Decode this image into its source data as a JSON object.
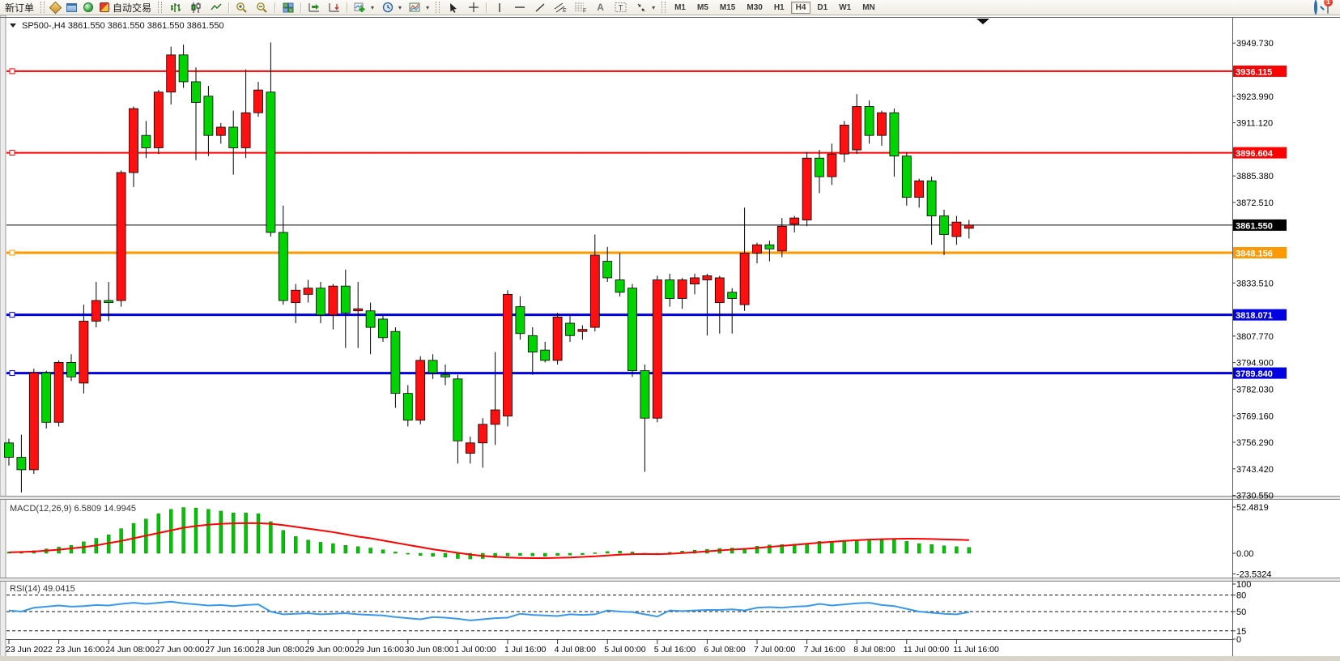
{
  "toolbar": {
    "new_order_label": "新订单",
    "autotrade_label": "自动交易",
    "channel_letter": "E",
    "fibo_letter": "F",
    "text_letter": "A",
    "label_letter": "T",
    "timeframes": [
      "M1",
      "M5",
      "M15",
      "M30",
      "H1",
      "H4",
      "D1",
      "W1",
      "MN"
    ],
    "active_timeframe": "H4",
    "chat_badge": "1"
  },
  "chart": {
    "symbol_header": "SP500-,H4  3861.550 3861.550 3861.550 3861.550",
    "macd_title": "MACD(12,26,9)",
    "macd_values": "6.5809 14.9945",
    "rsi_title": "RSI(14)",
    "rsi_value": "49.0415"
  },
  "chart_data": {
    "type": "candlestick",
    "symbol": "SP500-",
    "timeframe": "H4",
    "ylim": [
      3730.4,
      3961.2
    ],
    "colors": {
      "bull": "#fe1010",
      "bear": "#00d400",
      "wick": "#000000",
      "macd_hist": "#00c400",
      "macd_signal": "#fe0000",
      "rsi": "#3a98e8",
      "level_red": "#fe0000",
      "level_orange": "#ff9900",
      "level_blue": "#0000e0",
      "price_line": "#000000"
    },
    "price_axis_ticks": [
      "3949.730",
      "3923.990",
      "3911.120",
      "3885.380",
      "3872.510",
      "3833.510",
      "3807.770",
      "3794.900",
      "3782.030",
      "3769.160",
      "3756.290",
      "3743.420",
      "3730.550"
    ],
    "levels": [
      {
        "price": 3936.115,
        "label": "3936.115",
        "color": "#fe0000",
        "width": 2
      },
      {
        "price": 3896.604,
        "label": "3896.604",
        "color": "#fe0000",
        "width": 2
      },
      {
        "price": 3848.156,
        "label": "3848.156",
        "color": "#ff9900",
        "width": 3
      },
      {
        "price": 3818.071,
        "label": "3818.071",
        "color": "#0000e0",
        "width": 3
      },
      {
        "price": 3789.84,
        "label": "3789.840",
        "color": "#0000e0",
        "width": 3
      },
      {
        "price": 3861.55,
        "label": "3861.550",
        "color": "#000000",
        "width": 1
      }
    ],
    "candles": [
      [
        3756,
        3758,
        3745,
        3749
      ],
      [
        3749,
        3760,
        3732,
        3743
      ],
      [
        3743,
        3792,
        3741,
        3790
      ],
      [
        3790,
        3791,
        3763,
        3766
      ],
      [
        3766,
        3796,
        3764,
        3795
      ],
      [
        3795,
        3799,
        3786,
        3788
      ],
      [
        3785,
        3823,
        3780,
        3815
      ],
      [
        3815,
        3834,
        3812,
        3825
      ],
      [
        3825,
        3834,
        3815,
        3824
      ],
      [
        3825,
        3888,
        3822,
        3887
      ],
      [
        3887,
        3919,
        3880,
        3918
      ],
      [
        3905,
        3912,
        3894,
        3899
      ],
      [
        3899,
        3927,
        3896,
        3926
      ],
      [
        3926,
        3948,
        3920,
        3944
      ],
      [
        3944,
        3949,
        3928,
        3931
      ],
      [
        3931,
        3938,
        3893,
        3921
      ],
      [
        3924,
        3929,
        3895,
        3905
      ],
      [
        3905,
        3911,
        3901,
        3909
      ],
      [
        3909,
        3917,
        3886,
        3899
      ],
      [
        3899,
        3937,
        3894,
        3916
      ],
      [
        3916,
        3931,
        3914,
        3927
      ],
      [
        3926,
        3950,
        3856,
        3858
      ],
      [
        3858,
        3871,
        3823,
        3825
      ],
      [
        3824,
        3833,
        3814,
        3830
      ],
      [
        3828,
        3835,
        3824,
        3831
      ],
      [
        3831,
        3834,
        3814,
        3818
      ],
      [
        3818,
        3833,
        3811,
        3832
      ],
      [
        3832,
        3840,
        3802,
        3819
      ],
      [
        3820,
        3834,
        3802,
        3821
      ],
      [
        3820,
        3824,
        3799,
        3812
      ],
      [
        3816,
        3818,
        3805,
        3807
      ],
      [
        3810,
        3812,
        3773,
        3780
      ],
      [
        3780,
        3784,
        3764,
        3767
      ],
      [
        3767,
        3798,
        3765,
        3796
      ],
      [
        3796,
        3799,
        3787,
        3790
      ],
      [
        3789,
        3794,
        3784,
        3788
      ],
      [
        3787,
        3789,
        3746,
        3757
      ],
      [
        3751,
        3759,
        3746,
        3756
      ],
      [
        3756,
        3768,
        3744,
        3765
      ],
      [
        3765,
        3800,
        3755,
        3772
      ],
      [
        3769,
        3830,
        3764,
        3828
      ],
      [
        3822,
        3827,
        3806,
        3809
      ],
      [
        3808,
        3812,
        3789,
        3800
      ],
      [
        3801,
        3805,
        3795,
        3796
      ],
      [
        3796,
        3819,
        3794,
        3817
      ],
      [
        3814,
        3818,
        3805,
        3808
      ],
      [
        3810,
        3813,
        3806,
        3811
      ],
      [
        3812,
        3857,
        3810,
        3847
      ],
      [
        3844,
        3851,
        3834,
        3836
      ],
      [
        3835,
        3848,
        3827,
        3829
      ],
      [
        3831,
        3833,
        3788,
        3791
      ],
      [
        3791,
        3794,
        3742,
        3768
      ],
      [
        3768,
        3837,
        3766,
        3835
      ],
      [
        3835,
        3838,
        3822,
        3826
      ],
      [
        3826,
        3836,
        3821,
        3835
      ],
      [
        3833,
        3838,
        3828,
        3836
      ],
      [
        3835,
        3838,
        3808,
        3837
      ],
      [
        3824,
        3837,
        3809,
        3836
      ],
      [
        3829,
        3831,
        3809,
        3826
      ],
      [
        3823,
        3870,
        3820,
        3848
      ],
      [
        3848,
        3853,
        3843,
        3852
      ],
      [
        3852,
        3854,
        3844,
        3850
      ],
      [
        3849,
        3865,
        3846,
        3861
      ],
      [
        3862,
        3866,
        3858,
        3865
      ],
      [
        3864,
        3897,
        3861,
        3894
      ],
      [
        3894,
        3898,
        3877,
        3885
      ],
      [
        3885,
        3901,
        3881,
        3896
      ],
      [
        3896,
        3912,
        3892,
        3910
      ],
      [
        3898,
        3925,
        3896,
        3919
      ],
      [
        3919,
        3922,
        3901,
        3905
      ],
      [
        3905,
        3917,
        3900,
        3916
      ],
      [
        3916,
        3918,
        3885,
        3895
      ],
      [
        3895,
        3897,
        3871,
        3875
      ],
      [
        3875,
        3884,
        3870,
        3883
      ],
      [
        3883,
        3885,
        3852,
        3866
      ],
      [
        3866,
        3869,
        3847,
        3857
      ],
      [
        3856,
        3866,
        3852,
        3863
      ],
      [
        3860,
        3864,
        3855,
        3861.55
      ]
    ],
    "dates": [
      "23 Jun 2022",
      "23 Jun 16:00",
      "24 Jun 08:00",
      "27 Jun 00:00",
      "27 Jun 16:00",
      "28 Jun 08:00",
      "29 Jun 00:00",
      "29 Jun 16:00",
      "30 Jun 08:00",
      "1 Jul 00:00",
      "1 Jul 16:00",
      "4 Jul 08:00",
      "5 Jul 00:00",
      "5 Jul 16:00",
      "6 Jul 08:00",
      "7 Jul 00:00",
      "7 Jul 16:00",
      "8 Jul 08:00",
      "11 Jul 00:00",
      "11 Jul 16:00"
    ],
    "macd": {
      "hist": [
        1.5,
        2,
        3,
        5,
        7,
        9,
        13,
        17,
        21,
        28,
        34,
        39,
        45,
        50,
        52,
        51.5,
        50,
        48,
        46,
        46,
        45,
        36,
        26,
        19,
        15,
        12.5,
        11,
        9,
        7.5,
        6,
        4,
        1.5,
        -1,
        -2.5,
        -3.5,
        -4.5,
        -6,
        -6.5,
        -6,
        -5,
        -3,
        -2.5,
        -3,
        -3.5,
        -2.5,
        -2,
        -1.5,
        0.5,
        2,
        2.5,
        1.5,
        -0.5,
        -1.5,
        1,
        2.5,
        3.5,
        4.5,
        5.5,
        6,
        5.5,
        8,
        9.5,
        10,
        10.5,
        11,
        13.5,
        13,
        13.5,
        15,
        16,
        15,
        15.5,
        13.5,
        11,
        10,
        8.5,
        7.5,
        6.58
      ],
      "signal": [
        1,
        1.5,
        2,
        3,
        4,
        5.5,
        7,
        9,
        11.5,
        14,
        17,
        20,
        23,
        26,
        29,
        31,
        32.5,
        33.5,
        34,
        34.3,
        34.2,
        33.5,
        32,
        30,
        28,
        26,
        24,
        21.5,
        19,
        17,
        14.5,
        12,
        9.5,
        7,
        4.5,
        2.5,
        0.5,
        -1.5,
        -3,
        -4,
        -4.8,
        -5.3,
        -5.5,
        -5.5,
        -5.2,
        -4.8,
        -4.2,
        -3.4,
        -2.5,
        -1.6,
        -1,
        -0.8,
        -1,
        -0.6,
        0.2,
        1.2,
        2.2,
        3.2,
        4.2,
        5,
        6,
        7.2,
        8.4,
        9.6,
        10.8,
        12,
        13,
        14,
        14.8,
        15.5,
        16,
        16.4,
        16.6,
        16.5,
        16.2,
        15.8,
        15.4,
        14.99
      ],
      "axis": [
        "52.4819",
        "0.00",
        "-23.5324"
      ]
    },
    "rsi": {
      "values": [
        52,
        50,
        57,
        59,
        61,
        59,
        60,
        62,
        61,
        64,
        66,
        64,
        66,
        68,
        65,
        63,
        61,
        62,
        60,
        62,
        63,
        50,
        45,
        46,
        47,
        45,
        46,
        47,
        45,
        44,
        43,
        40,
        38,
        36,
        40,
        39,
        37,
        34,
        36,
        38,
        39,
        46,
        44,
        43,
        42,
        45,
        44,
        45,
        52,
        50,
        49,
        45,
        41,
        52,
        51,
        52,
        53,
        53,
        54,
        52,
        57,
        58,
        57,
        59,
        60,
        64,
        61,
        63,
        65,
        66,
        62,
        60,
        55,
        50,
        48,
        46,
        45,
        49.04
      ],
      "levels": [
        80,
        50,
        15
      ],
      "axis": [
        "100",
        "80",
        "50",
        "15",
        "0"
      ]
    }
  }
}
